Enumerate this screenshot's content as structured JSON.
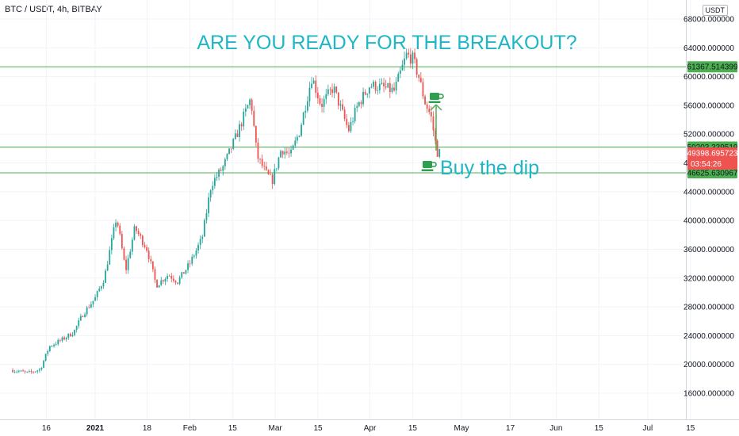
{
  "symbol": "BTC / USDT, 4h, BITBAY",
  "currency": "USDT",
  "headline": "ARE YOU READY FOR THE BREAKOUT?",
  "annotation": "Buy the dip",
  "icons": [
    "coffee-cup-icon",
    "coffee-cup-icon"
  ],
  "colors": {
    "up": "#26a69a",
    "down": "#ef5350",
    "level_line": "#4caf50",
    "annotation_text": "#1fb6c6",
    "current_price_tag": "#ef5350"
  },
  "chart_data": {
    "type": "candlestick",
    "y_axis": {
      "ticks": [
        16000,
        20000,
        24000,
        28000,
        32000,
        36000,
        40000,
        44000,
        48000,
        52000,
        56000,
        60000,
        64000,
        68000
      ],
      "tick_labels": [
        "16000.000000",
        "20000.000000",
        "24000.000000",
        "28000.000000",
        "32000.000000",
        "36000.000000",
        "40000.000000",
        "44000.000000",
        "48000.000000",
        "52000.000000",
        "56000.000000",
        "60000.000000",
        "64000.000000",
        "68000.000000"
      ],
      "range": [
        14000,
        69500
      ]
    },
    "x_axis": {
      "labels": [
        "16",
        "2021",
        "18",
        "Feb",
        "15",
        "Mar",
        "15",
        "Apr",
        "15",
        "May",
        "17",
        "Jun",
        "15",
        "Jul",
        "15"
      ],
      "bold": [
        "2021"
      ]
    },
    "horizontal_levels": [
      {
        "price": 61367.514399,
        "label": "61367.514399"
      },
      {
        "price": 50203.339519,
        "label": "50203.339519"
      },
      {
        "price": 46625.630967,
        "label": "46625.630967"
      }
    ],
    "current_price": {
      "price": 49398.695723,
      "label": "49398.695723",
      "countdown": "03:54:26"
    },
    "trend_path": [
      {
        "x": "Dec 5",
        "y": 19200
      },
      {
        "x": "Dec 10",
        "y": 18800
      },
      {
        "x": "Dec 14",
        "y": 19300
      },
      {
        "x": "Dec 17",
        "y": 22500
      },
      {
        "x": "Dec 21",
        "y": 23400
      },
      {
        "x": "Dec 25",
        "y": 24500
      },
      {
        "x": "Dec 28",
        "y": 27000
      },
      {
        "x": "Jan 1",
        "y": 29200
      },
      {
        "x": "Jan 4",
        "y": 32000
      },
      {
        "x": "Jan 8",
        "y": 40500
      },
      {
        "x": "Jan 11",
        "y": 33000
      },
      {
        "x": "Jan 14",
        "y": 39000
      },
      {
        "x": "Jan 18",
        "y": 36000
      },
      {
        "x": "Jan 21",
        "y": 31000
      },
      {
        "x": "Jan 25",
        "y": 32500
      },
      {
        "x": "Jan 28",
        "y": 31500
      },
      {
        "x": "Feb 1",
        "y": 34000
      },
      {
        "x": "Feb 5",
        "y": 37500
      },
      {
        "x": "Feb 8",
        "y": 45000
      },
      {
        "x": "Feb 12",
        "y": 47500
      },
      {
        "x": "Feb 16",
        "y": 51500
      },
      {
        "x": "Feb 21",
        "y": 57000
      },
      {
        "x": "Feb 23",
        "y": 49000
      },
      {
        "x": "Feb 26",
        "y": 46500
      },
      {
        "x": "Feb 28",
        "y": 45500
      },
      {
        "x": "Mar 3",
        "y": 50000
      },
      {
        "x": "Mar 6",
        "y": 49000
      },
      {
        "x": "Mar 9",
        "y": 52500
      },
      {
        "x": "Mar 13",
        "y": 60000
      },
      {
        "x": "Mar 16",
        "y": 56000
      },
      {
        "x": "Mar 20",
        "y": 58500
      },
      {
        "x": "Mar 25",
        "y": 52500
      },
      {
        "x": "Mar 28",
        "y": 56000
      },
      {
        "x": "Apr 1",
        "y": 58800
      },
      {
        "x": "Apr 5",
        "y": 58500
      },
      {
        "x": "Apr 9",
        "y": 58000
      },
      {
        "x": "Apr 13",
        "y": 63000
      },
      {
        "x": "Apr 15",
        "y": 62500
      },
      {
        "x": "Apr 17",
        "y": 60000
      },
      {
        "x": "Apr 19",
        "y": 56500
      },
      {
        "x": "Apr 21",
        "y": 54500
      },
      {
        "x": "Apr 23",
        "y": 49500
      },
      {
        "x": "Apr 24",
        "y": 49400
      }
    ]
  }
}
